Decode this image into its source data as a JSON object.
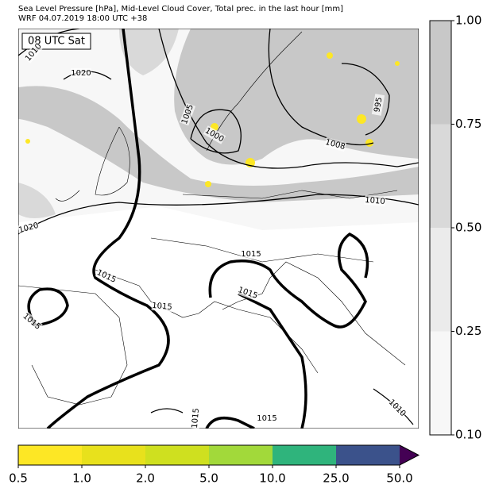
{
  "header": {
    "line1": "Sea Level Pressure [hPa], Mid-Level Cloud Cover, Total prec. in the last hour [mm]",
    "line2": "WRF 04.07.2019 18:00 UTC +38"
  },
  "map": {
    "time_label": "08 UTC Sat",
    "contour_labels": [
      "1010",
      "1020",
      "1005",
      "1000",
      "1008",
      "995",
      "1010",
      "1020",
      "1015",
      "1015",
      "1015",
      "1015",
      "1015",
      "1015",
      "1015",
      "1010"
    ]
  },
  "cloud_colorbar": {
    "labels": [
      "1.00",
      "0.75",
      "0.50",
      "0.25",
      "0.10"
    ],
    "colors": [
      "#c8c8c8",
      "#d9d9d9",
      "#ebebeb",
      "#f7f7f7"
    ]
  },
  "precip_colorbar": {
    "labels": [
      "0.5",
      "1.0",
      "2.0",
      "5.0",
      "10.0",
      "25.0",
      "50.0"
    ],
    "colors": [
      "#fde725",
      "#e8e11c",
      "#cfe01f",
      "#a2d93a",
      "#2fb47c",
      "#3b528b",
      "#440154"
    ]
  }
}
